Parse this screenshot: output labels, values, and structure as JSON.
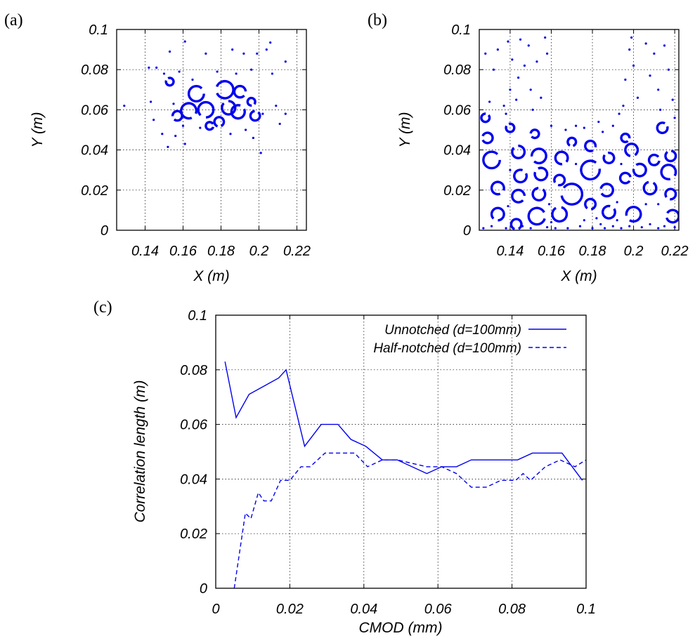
{
  "colors": {
    "series": "#0000ee",
    "axis": "#000000"
  },
  "chart_data": [
    {
      "id": "a",
      "type": "scatter",
      "panel_label": "(a)",
      "xlabel": "X (m)",
      "ylabel": "Y (m)",
      "xlim": [
        0.125,
        0.225
      ],
      "ylim": [
        0,
        0.1
      ],
      "x_ticks": [
        0.14,
        0.16,
        0.18,
        0.2,
        0.22
      ],
      "x_tick_labels": [
        "0.14",
        "0.16",
        "0.18",
        "0.2",
        "0.22"
      ],
      "y_ticks": [
        0,
        0.02,
        0.04,
        0.06,
        0.08,
        0.1
      ],
      "y_tick_labels": [
        "0",
        "0.02",
        "0.04",
        "0.06",
        "0.08",
        "0.1"
      ],
      "grid": true,
      "rings": [
        {
          "x": 0.167,
          "y": 0.068,
          "r": 0.004
        },
        {
          "x": 0.163,
          "y": 0.0595,
          "r": 0.004
        },
        {
          "x": 0.172,
          "y": 0.06,
          "r": 0.004
        },
        {
          "x": 0.182,
          "y": 0.07,
          "r": 0.0045
        },
        {
          "x": 0.184,
          "y": 0.061,
          "r": 0.0035
        },
        {
          "x": 0.189,
          "y": 0.059,
          "r": 0.0035
        },
        {
          "x": 0.19,
          "y": 0.069,
          "r": 0.003
        },
        {
          "x": 0.179,
          "y": 0.054,
          "r": 0.0025
        },
        {
          "x": 0.157,
          "y": 0.057,
          "r": 0.0025
        },
        {
          "x": 0.153,
          "y": 0.074,
          "r": 0.002
        },
        {
          "x": 0.198,
          "y": 0.057,
          "r": 0.0025
        },
        {
          "x": 0.174,
          "y": 0.052,
          "r": 0.002
        },
        {
          "x": 0.196,
          "y": 0.064,
          "r": 0.002
        }
      ],
      "points": [
        [
          0.129,
          0.062
        ],
        [
          0.142,
          0.081
        ],
        [
          0.143,
          0.064
        ],
        [
          0.1445,
          0.055
        ],
        [
          0.146,
          0.081
        ],
        [
          0.149,
          0.048
        ],
        [
          0.15,
          0.078
        ],
        [
          0.152,
          0.0415
        ],
        [
          0.153,
          0.089
        ],
        [
          0.155,
          0.063
        ],
        [
          0.156,
          0.047
        ],
        [
          0.158,
          0.079
        ],
        [
          0.161,
          0.094
        ],
        [
          0.161,
          0.043
        ],
        [
          0.165,
          0.075
        ],
        [
          0.169,
          0.051
        ],
        [
          0.172,
          0.088
        ],
        [
          0.178,
          0.079
        ],
        [
          0.186,
          0.09
        ],
        [
          0.188,
          0.078
        ],
        [
          0.192,
          0.088
        ],
        [
          0.193,
          0.05
        ],
        [
          0.196,
          0.08
        ],
        [
          0.199,
          0.088
        ],
        [
          0.201,
          0.0385
        ],
        [
          0.202,
          0.058
        ],
        [
          0.204,
          0.09
        ],
        [
          0.206,
          0.0935
        ],
        [
          0.207,
          0.078
        ],
        [
          0.209,
          0.062
        ],
        [
          0.211,
          0.053
        ],
        [
          0.214,
          0.084
        ],
        [
          0.214,
          0.058
        ],
        [
          0.197,
          0.046
        ],
        [
          0.185,
          0.048
        ],
        [
          0.16,
          0.052
        ]
      ]
    },
    {
      "id": "b",
      "type": "scatter",
      "panel_label": "(b)",
      "xlabel": "X (m)",
      "ylabel": "Y (m)",
      "xlim": [
        0.125,
        0.222
      ],
      "ylim": [
        0,
        0.1
      ],
      "x_ticks": [
        0.14,
        0.16,
        0.18,
        0.2,
        0.22
      ],
      "x_tick_labels": [
        "0.14",
        "0.16",
        "0.18",
        "0.2",
        "0.22"
      ],
      "y_ticks": [
        0,
        0.02,
        0.04,
        0.06,
        0.08,
        0.1
      ],
      "y_tick_labels": [
        "0",
        "0.02",
        "0.04",
        "0.06",
        "0.08",
        "0.1"
      ],
      "grid": true,
      "rings": [
        {
          "x": 0.131,
          "y": 0.035,
          "r": 0.004
        },
        {
          "x": 0.134,
          "y": 0.021,
          "r": 0.003
        },
        {
          "x": 0.134,
          "y": 0.008,
          "r": 0.003
        },
        {
          "x": 0.129,
          "y": 0.046,
          "r": 0.0025
        },
        {
          "x": 0.144,
          "y": 0.039,
          "r": 0.003
        },
        {
          "x": 0.145,
          "y": 0.027,
          "r": 0.003
        },
        {
          "x": 0.144,
          "y": 0.017,
          "r": 0.003
        },
        {
          "x": 0.143,
          "y": 0.003,
          "r": 0.0025
        },
        {
          "x": 0.154,
          "y": 0.037,
          "r": 0.0035
        },
        {
          "x": 0.155,
          "y": 0.028,
          "r": 0.003
        },
        {
          "x": 0.154,
          "y": 0.018,
          "r": 0.003
        },
        {
          "x": 0.153,
          "y": 0.007,
          "r": 0.004
        },
        {
          "x": 0.165,
          "y": 0.036,
          "r": 0.003
        },
        {
          "x": 0.164,
          "y": 0.025,
          "r": 0.0025
        },
        {
          "x": 0.17,
          "y": 0.018,
          "r": 0.005
        },
        {
          "x": 0.164,
          "y": 0.008,
          "r": 0.0035
        },
        {
          "x": 0.179,
          "y": 0.03,
          "r": 0.0045
        },
        {
          "x": 0.179,
          "y": 0.042,
          "r": 0.0025
        },
        {
          "x": 0.179,
          "y": 0.013,
          "r": 0.0025
        },
        {
          "x": 0.187,
          "y": 0.02,
          "r": 0.003
        },
        {
          "x": 0.188,
          "y": 0.036,
          "r": 0.0025
        },
        {
          "x": 0.188,
          "y": 0.009,
          "r": 0.003
        },
        {
          "x": 0.196,
          "y": 0.026,
          "r": 0.0025
        },
        {
          "x": 0.199,
          "y": 0.04,
          "r": 0.003
        },
        {
          "x": 0.2,
          "y": 0.008,
          "r": 0.0035
        },
        {
          "x": 0.203,
          "y": 0.03,
          "r": 0.003
        },
        {
          "x": 0.208,
          "y": 0.021,
          "r": 0.003
        },
        {
          "x": 0.21,
          "y": 0.035,
          "r": 0.0025
        },
        {
          "x": 0.217,
          "y": 0.029,
          "r": 0.0035
        },
        {
          "x": 0.218,
          "y": 0.018,
          "r": 0.0025
        },
        {
          "x": 0.219,
          "y": 0.007,
          "r": 0.003
        },
        {
          "x": 0.218,
          "y": 0.037,
          "r": 0.0025
        },
        {
          "x": 0.214,
          "y": 0.051,
          "r": 0.0025
        },
        {
          "x": 0.196,
          "y": 0.046,
          "r": 0.002
        },
        {
          "x": 0.17,
          "y": 0.044,
          "r": 0.002
        },
        {
          "x": 0.152,
          "y": 0.048,
          "r": 0.002
        },
        {
          "x": 0.14,
          "y": 0.051,
          "r": 0.002
        },
        {
          "x": 0.128,
          "y": 0.056,
          "r": 0.002
        }
      ],
      "points": [
        [
          0.128,
          0.088
        ],
        [
          0.13,
          0.064
        ],
        [
          0.132,
          0.08
        ],
        [
          0.134,
          0.09
        ],
        [
          0.137,
          0.062
        ],
        [
          0.138,
          0.058
        ],
        [
          0.139,
          0.094
        ],
        [
          0.14,
          0.07
        ],
        [
          0.141,
          0.085
        ],
        [
          0.143,
          0.065
        ],
        [
          0.144,
          0.076
        ],
        [
          0.145,
          0.095
        ],
        [
          0.147,
          0.082
        ],
        [
          0.149,
          0.092
        ],
        [
          0.15,
          0.07
        ],
        [
          0.151,
          0.06
        ],
        [
          0.153,
          0.084
        ],
        [
          0.155,
          0.066
        ],
        [
          0.157,
          0.096
        ],
        [
          0.158,
          0.088
        ],
        [
          0.16,
          0.052
        ],
        [
          0.167,
          0.05
        ],
        [
          0.172,
          0.052
        ],
        [
          0.176,
          0.051
        ],
        [
          0.183,
          0.054
        ],
        [
          0.185,
          0.049
        ],
        [
          0.19,
          0.052
        ],
        [
          0.193,
          0.058
        ],
        [
          0.195,
          0.062
        ],
        [
          0.196,
          0.075
        ],
        [
          0.198,
          0.09
        ],
        [
          0.199,
          0.096
        ],
        [
          0.2,
          0.082
        ],
        [
          0.202,
          0.066
        ],
        [
          0.206,
          0.093
        ],
        [
          0.208,
          0.077
        ],
        [
          0.21,
          0.088
        ],
        [
          0.212,
          0.07
        ],
        [
          0.213,
          0.06
        ],
        [
          0.215,
          0.092
        ],
        [
          0.217,
          0.08
        ],
        [
          0.219,
          0.065
        ],
        [
          0.22,
          0.056
        ],
        [
          0.127,
          0.001
        ],
        [
          0.131,
          0.002
        ],
        [
          0.138,
          0.001
        ],
        [
          0.146,
          0.002
        ],
        [
          0.15,
          0.001
        ],
        [
          0.158,
          0.0015
        ],
        [
          0.16,
          0.004
        ],
        [
          0.162,
          0.001
        ],
        [
          0.168,
          0.001
        ],
        [
          0.174,
          0.002
        ],
        [
          0.176,
          0.005
        ],
        [
          0.18,
          0.001
        ],
        [
          0.182,
          0.006
        ],
        [
          0.184,
          0.003
        ],
        [
          0.186,
          0.001
        ],
        [
          0.19,
          0.002
        ],
        [
          0.192,
          0.005
        ],
        [
          0.194,
          0.001
        ],
        [
          0.198,
          0.002
        ],
        [
          0.204,
          0.0015
        ],
        [
          0.208,
          0.003
        ],
        [
          0.212,
          0.001
        ],
        [
          0.215,
          0.002
        ],
        [
          0.22,
          0.0015
        ],
        [
          0.192,
          0.014
        ],
        [
          0.194,
          0.033
        ],
        [
          0.172,
          0.033
        ],
        [
          0.159,
          0.013
        ],
        [
          0.139,
          0.012
        ],
        [
          0.14,
          0.03
        ],
        [
          0.212,
          0.013
        ],
        [
          0.206,
          0.013
        ]
      ]
    },
    {
      "id": "c",
      "type": "line",
      "panel_label": "(c)",
      "xlabel": "CMOD (mm)",
      "ylabel": "Correlation length (m)",
      "xlim": [
        0,
        0.1
      ],
      "ylim": [
        0,
        0.1
      ],
      "x_ticks": [
        0,
        0.02,
        0.04,
        0.06,
        0.08,
        0.1
      ],
      "x_tick_labels": [
        "0",
        "0.02",
        "0.04",
        "0.06",
        "0.08",
        "0.1"
      ],
      "y_ticks": [
        0,
        0.02,
        0.04,
        0.06,
        0.08,
        0.1
      ],
      "y_tick_labels": [
        "0",
        "0.02",
        "0.04",
        "0.06",
        "0.08",
        "0.1"
      ],
      "grid": true,
      "legend": "top-right",
      "series": [
        {
          "name": "Unnotched (d=100mm)",
          "style": "solid",
          "x": [
            0.0025,
            0.0055,
            0.009,
            0.017,
            0.019,
            0.024,
            0.0285,
            0.033,
            0.0365,
            0.0405,
            0.045,
            0.049,
            0.057,
            0.061,
            0.065,
            0.069,
            0.073,
            0.077,
            0.0815,
            0.0855,
            0.0895,
            0.0935,
            0.099
          ],
          "y": [
            0.083,
            0.0625,
            0.071,
            0.077,
            0.08,
            0.052,
            0.06,
            0.06,
            0.0545,
            0.052,
            0.047,
            0.047,
            0.042,
            0.0445,
            0.0445,
            0.047,
            0.047,
            0.047,
            0.047,
            0.0495,
            0.0495,
            0.0495,
            0.0395
          ]
        },
        {
          "name": "Half-notched (d=100mm)",
          "style": "dashed",
          "x": [
            0.005,
            0.008,
            0.0095,
            0.0115,
            0.013,
            0.015,
            0.0175,
            0.02,
            0.023,
            0.0255,
            0.0295,
            0.0335,
            0.0375,
            0.041,
            0.045,
            0.049,
            0.057,
            0.061,
            0.065,
            0.069,
            0.073,
            0.077,
            0.081,
            0.083,
            0.085,
            0.089,
            0.093,
            0.097,
            0.1
          ],
          "y": [
            0.0,
            0.0275,
            0.0255,
            0.035,
            0.032,
            0.032,
            0.0395,
            0.0395,
            0.0445,
            0.0445,
            0.0495,
            0.0495,
            0.0495,
            0.0445,
            0.047,
            0.047,
            0.0445,
            0.0445,
            0.042,
            0.037,
            0.037,
            0.0395,
            0.0395,
            0.042,
            0.0395,
            0.0445,
            0.047,
            0.0445,
            0.047
          ]
        }
      ]
    }
  ]
}
